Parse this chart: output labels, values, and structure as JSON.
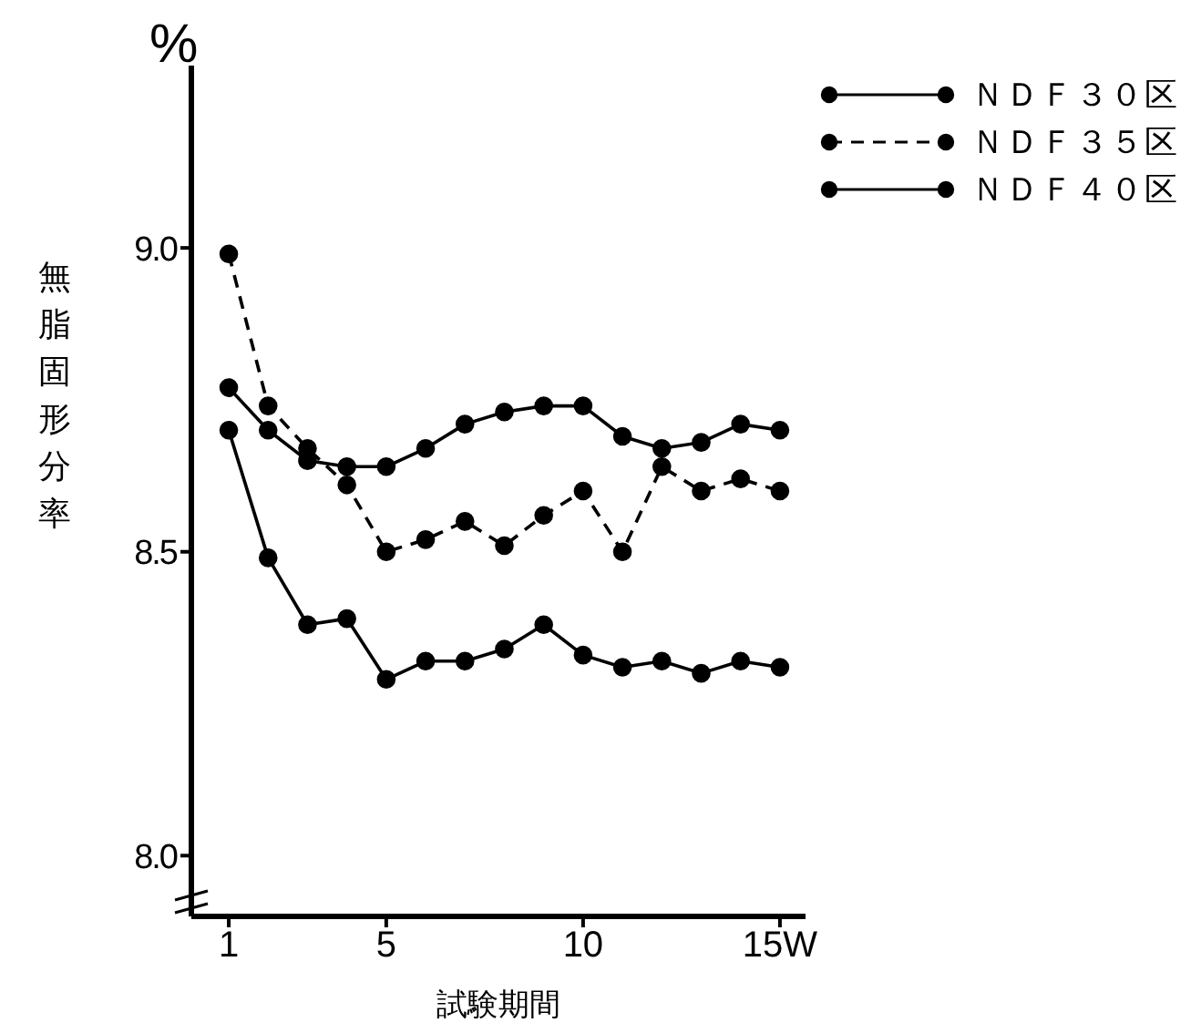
{
  "chart_data": {
    "type": "line",
    "xlabel": "試験期間",
    "ylabel": "無脂固形分率",
    "annotations": [
      "%"
    ],
    "x": [
      1,
      2,
      3,
      4,
      5,
      6,
      7,
      8,
      9,
      10,
      11,
      12,
      13,
      14,
      15
    ],
    "series": [
      {
        "name": "ＮＤＦ３０区",
        "color": "#000000",
        "line_style": "solid",
        "values": [
          8.77,
          8.7,
          8.65,
          8.64,
          8.64,
          8.67,
          8.71,
          8.73,
          8.74,
          8.74,
          8.69,
          8.67,
          8.68,
          8.71,
          8.7
        ]
      },
      {
        "name": "ＮＤＦ３５区",
        "color": "#000000",
        "line_style": "dashed",
        "values": [
          8.99,
          8.74,
          8.67,
          8.61,
          8.5,
          8.52,
          8.55,
          8.51,
          8.56,
          8.6,
          8.5,
          8.64,
          8.6,
          8.62,
          8.6
        ]
      },
      {
        "name": "ＮＤＦ４０区",
        "color": "#000000",
        "line_style": "solid",
        "values": [
          8.7,
          8.49,
          8.38,
          8.39,
          8.29,
          8.32,
          8.32,
          8.34,
          8.38,
          8.33,
          8.31,
          8.32,
          8.3,
          8.32,
          8.31
        ]
      }
    ],
    "xlim": [
      0.05,
      15.65
    ],
    "xticks": [
      1,
      5,
      10,
      {
        "value": 15,
        "label": "15W"
      }
    ],
    "ylim": [
      7.9,
      9.3
    ],
    "yticks": [
      {
        "value": 8,
        "label": "8.0"
      },
      8.5,
      {
        "value": 9,
        "label": "9.0"
      }
    ],
    "grid": false,
    "legend": "top right",
    "marker": "circle"
  }
}
